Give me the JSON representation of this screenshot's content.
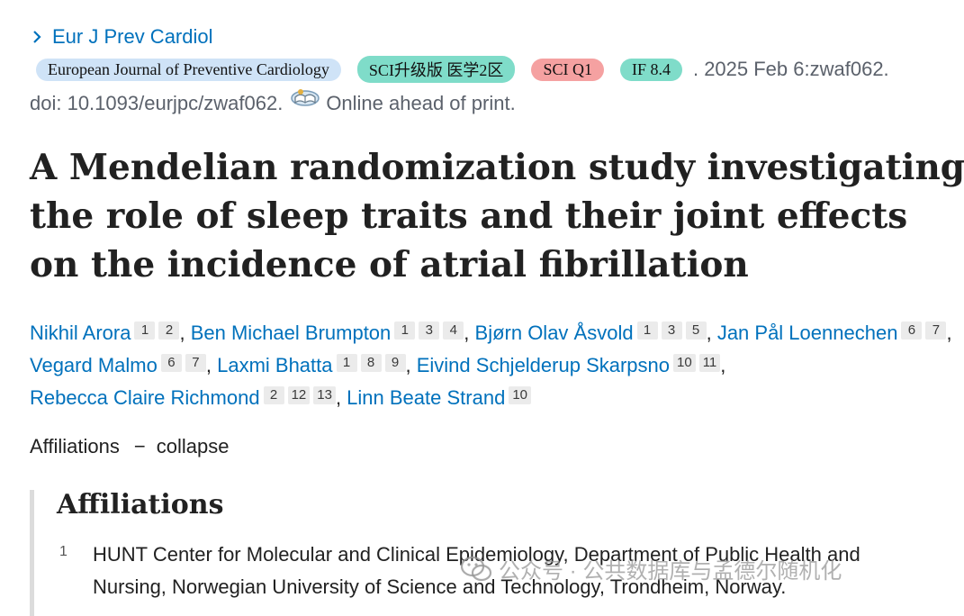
{
  "journal": {
    "short_name": "Eur J Prev Cardiol"
  },
  "meta": {
    "tags": [
      {
        "label": "European Journal of Preventive Cardiology",
        "color": "#cfe3f7"
      },
      {
        "label": "SCI升级版 医学2区",
        "color": "#7fdcc9"
      },
      {
        "label": "SCI Q1",
        "color": "#f5a1a1"
      },
      {
        "label": "IF 8.4",
        "color": "#7fdcc9"
      }
    ],
    "date_text": ". 2025 Feb 6:zwaf062.",
    "doi_text": "doi: 10.1093/eurjpc/zwaf062.",
    "doi_icon": "open-book-icon",
    "status_text": "Online ahead of print."
  },
  "title": "A Mendelian randomization study investigating the role of sleep traits and their joint effects on the incidence of atrial fibrillation",
  "authors": [
    {
      "name": "Nikhil Arora",
      "affils": [
        "1",
        "2"
      ]
    },
    {
      "name": "Ben Michael Brumpton",
      "affils": [
        "1",
        "3",
        "4"
      ]
    },
    {
      "name": "Bjørn Olav Åsvold",
      "affils": [
        "1",
        "3",
        "5"
      ]
    },
    {
      "name": "Jan Pål Loennechen",
      "affils": [
        "6",
        "7"
      ]
    },
    {
      "name": "Vegard Malmo",
      "affils": [
        "6",
        "7"
      ]
    },
    {
      "name": "Laxmi Bhatta",
      "affils": [
        "1",
        "8",
        "9"
      ]
    },
    {
      "name": "Eivind Schjelderup Skarpsno",
      "affils": [
        "10",
        "11"
      ]
    },
    {
      "name": "Rebecca Claire Richmond",
      "affils": [
        "2",
        "12",
        "13"
      ]
    },
    {
      "name": "Linn Beate Strand",
      "affils": [
        "10"
      ]
    }
  ],
  "affiliations_toggle": {
    "label": "Affiliations",
    "dash": "−",
    "action": "collapse"
  },
  "affiliations": {
    "heading": "Affiliations",
    "items": [
      {
        "num": "1",
        "text": "HUNT Center for Molecular and Clinical Epidemiology, Department of Public Health and Nursing, Norwegian University of Science and Technology, Trondheim, Norway."
      }
    ]
  },
  "watermark": {
    "text": "公众号 · 公共数据库与孟德尔随机化",
    "icon": "wechat-icon"
  },
  "colors": {
    "link": "#0071bc",
    "text": "#212121",
    "muted": "#5b616b"
  }
}
